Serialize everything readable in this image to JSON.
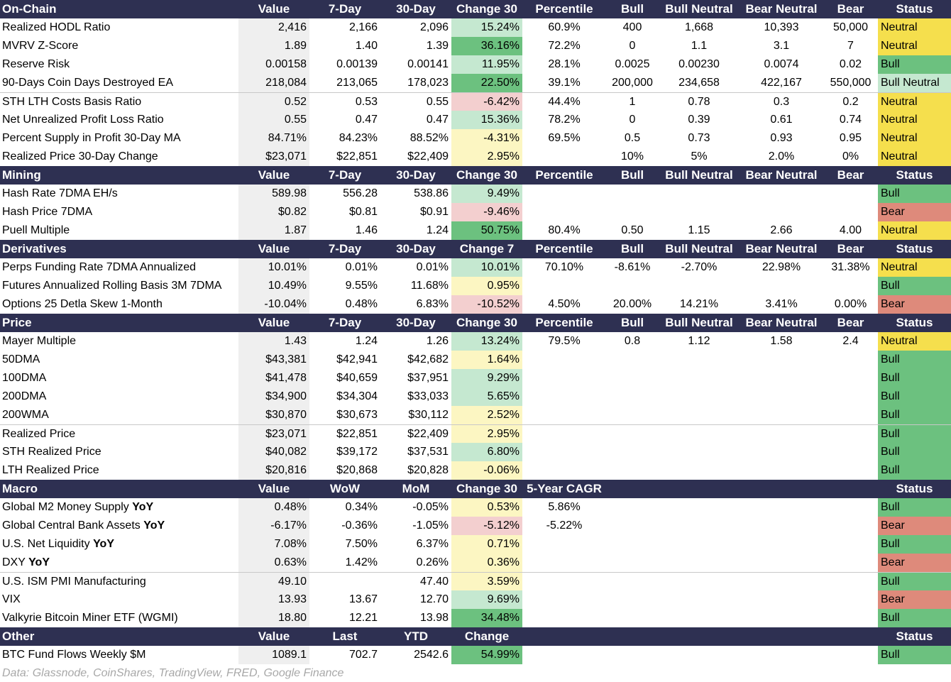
{
  "colors": {
    "header_bg": "#2e3052",
    "value_bg": "#efefef",
    "neutral": "#f5df4d",
    "bull": "#6cc17f",
    "bear": "#de8a7b",
    "bull_neutral": "#c5e8d0",
    "change_light_green": "#c5e8d0",
    "change_green": "#6cc17f",
    "change_yellow": "#fcf6c2",
    "change_pink": "#f3cfcf",
    "footer_text": "#a8a8a8"
  },
  "footer": "Data: Glassnode, CoinShares, TradingView, FRED, Google Finance",
  "sections": [
    {
      "header": [
        "On-Chain",
        "Value",
        "7-Day",
        "30-Day",
        "Change 30",
        "Percentile",
        "Bull",
        "Bull Neutral",
        "Bear Neutral",
        "Bear",
        "Status"
      ],
      "rows": [
        {
          "label": "Realized HODL Ratio",
          "vals": [
            "2,416",
            "2,166",
            "2,096",
            "15.24%",
            "60.9%",
            "400",
            "1,668",
            "10,393",
            "50,000",
            "Neutral"
          ],
          "chg": "lightgreen",
          "status": "neutral"
        },
        {
          "label": "MVRV Z-Score",
          "vals": [
            "1.89",
            "1.40",
            "1.39",
            "36.16%",
            "72.2%",
            "0",
            "1.1",
            "3.1",
            "7",
            "Neutral"
          ],
          "chg": "green",
          "status": "neutral"
        },
        {
          "label": "Reserve Risk",
          "vals": [
            "0.00158",
            "0.00139",
            "0.00141",
            "11.95%",
            "28.1%",
            "0.0025",
            "0.00230",
            "0.0074",
            "0.02",
            "Bull"
          ],
          "chg": "lightgreen",
          "status": "bull"
        },
        {
          "label": "90-Days Coin Days Destroyed EA",
          "vals": [
            "218,084",
            "213,065",
            "178,023",
            "22.50%",
            "39.1%",
            "200,000",
            "234,658",
            "422,167",
            "550,000",
            "Bull Neutral"
          ],
          "chg": "green",
          "status": "bullneutral"
        },
        {
          "label": "STH LTH Costs Basis Ratio",
          "vals": [
            "0.52",
            "0.53",
            "0.55",
            "-6.42%",
            "44.4%",
            "1",
            "0.78",
            "0.3",
            "0.2",
            "Neutral"
          ],
          "chg": "pink",
          "status": "neutral",
          "sep": true
        },
        {
          "label": "Net Unrealized Profit Loss Ratio",
          "vals": [
            "0.55",
            "0.47",
            "0.47",
            "15.36%",
            "78.2%",
            "0",
            "0.39",
            "0.61",
            "0.74",
            "Neutral"
          ],
          "chg": "lightgreen",
          "status": "neutral"
        },
        {
          "label": "Percent Supply in Profit 30-Day MA",
          "vals": [
            "84.71%",
            "84.23%",
            "88.52%",
            "-4.31%",
            "69.5%",
            "0.5",
            "0.73",
            "0.93",
            "0.95",
            "Neutral"
          ],
          "chg": "yellow",
          "status": "neutral"
        },
        {
          "label": "Realized Price 30-Day Change",
          "vals": [
            "$23,071",
            "$22,851",
            "$22,409",
            "2.95%",
            "",
            "10%",
            "5%",
            "2.0%",
            "0%",
            "Neutral"
          ],
          "chg": "yellow",
          "status": "neutral"
        }
      ]
    },
    {
      "header": [
        "Mining",
        "Value",
        "7-Day",
        "30-Day",
        "Change 30",
        "Percentile",
        "Bull",
        "Bull Neutral",
        "Bear Neutral",
        "Bear",
        "Status"
      ],
      "rows": [
        {
          "label": "Hash Rate 7DMA EH/s",
          "vals": [
            "589.98",
            "556.28",
            "538.86",
            "9.49%",
            "",
            "",
            "",
            "",
            "",
            "Bull"
          ],
          "chg": "lightgreen",
          "status": "bull"
        },
        {
          "label": "Hash Price 7DMA",
          "vals": [
            "$0.82",
            "$0.81",
            "$0.91",
            "-9.46%",
            "",
            "",
            "",
            "",
            "",
            "Bear"
          ],
          "chg": "pink",
          "status": "bear"
        },
        {
          "label": "Puell Multiple",
          "vals": [
            "1.87",
            "1.46",
            "1.24",
            "50.75%",
            "80.4%",
            "0.50",
            "1.15",
            "2.66",
            "4.00",
            "Neutral"
          ],
          "chg": "green",
          "status": "neutral"
        }
      ]
    },
    {
      "header": [
        "Derivatives",
        "Value",
        "7-Day",
        "30-Day",
        "Change 7",
        "Percentile",
        "Bull",
        "Bull Neutral",
        "Bear Neutral",
        "Bear",
        "Status"
      ],
      "rows": [
        {
          "label": "Perps Funding Rate 7DMA Annualized",
          "vals": [
            "10.01%",
            "0.01%",
            "0.01%",
            "10.01%",
            "70.10%",
            "-8.61%",
            "-2.70%",
            "22.98%",
            "31.38%",
            "Neutral"
          ],
          "chg": "lightgreen",
          "status": "neutral"
        },
        {
          "label": "Futures Annualized Rolling Basis 3M 7DMA",
          "vals": [
            "10.49%",
            "9.55%",
            "11.68%",
            "0.95%",
            "",
            "",
            "",
            "",
            "",
            "Bull"
          ],
          "chg": "yellow",
          "status": "bull"
        },
        {
          "label": "Options 25 Detla Skew 1-Month",
          "vals": [
            "-10.04%",
            "0.48%",
            "6.83%",
            "-10.52%",
            "4.50%",
            "20.00%",
            "14.21%",
            "3.41%",
            "0.00%",
            "Bear"
          ],
          "chg": "pink",
          "status": "bear"
        }
      ]
    },
    {
      "header": [
        "Price",
        "Value",
        "7-Day",
        "30-Day",
        "Change 30",
        "Percentile",
        "Bull",
        "Bull Neutral",
        "Bear Neutral",
        "Bear",
        "Status"
      ],
      "rows": [
        {
          "label": "Mayer Multiple",
          "vals": [
            "1.43",
            "1.24",
            "1.26",
            "13.24%",
            "79.5%",
            "0.8",
            "1.12",
            "1.58",
            "2.4",
            "Neutral"
          ],
          "chg": "lightgreen",
          "status": "neutral"
        },
        {
          "label": "50DMA",
          "vals": [
            "$43,381",
            "$42,941",
            "$42,682",
            "1.64%",
            "",
            "",
            "",
            "",
            "",
            "Bull"
          ],
          "chg": "yellow",
          "status": "bull"
        },
        {
          "label": "100DMA",
          "vals": [
            "$41,478",
            "$40,659",
            "$37,951",
            "9.29%",
            "",
            "",
            "",
            "",
            "",
            "Bull"
          ],
          "chg": "lightgreen",
          "status": "bull"
        },
        {
          "label": "200DMA",
          "vals": [
            "$34,900",
            "$34,304",
            "$33,033",
            "5.65%",
            "",
            "",
            "",
            "",
            "",
            "Bull"
          ],
          "chg": "lightgreen",
          "status": "bull"
        },
        {
          "label": "200WMA",
          "vals": [
            "$30,870",
            "$30,673",
            "$30,112",
            "2.52%",
            "",
            "",
            "",
            "",
            "",
            "Bull"
          ],
          "chg": "yellow",
          "status": "bull"
        },
        {
          "label": "Realized Price",
          "vals": [
            "$23,071",
            "$22,851",
            "$22,409",
            "2.95%",
            "",
            "",
            "",
            "",
            "",
            "Bull"
          ],
          "chg": "yellow",
          "status": "bull",
          "sep": true
        },
        {
          "label": "STH Realized Price",
          "vals": [
            "$40,082",
            "$39,172",
            "$37,531",
            "6.80%",
            "",
            "",
            "",
            "",
            "",
            "Bull"
          ],
          "chg": "lightgreen",
          "status": "bull"
        },
        {
          "label": "LTH Realized Price",
          "vals": [
            "$20,816",
            "$20,868",
            "$20,828",
            "-0.06%",
            "",
            "",
            "",
            "",
            "",
            "Bull"
          ],
          "chg": "yellow",
          "status": "bull"
        }
      ]
    },
    {
      "header": [
        "Macro",
        "Value",
        "WoW",
        "MoM",
        "Change 30",
        "5-Year CAGR",
        "",
        "",
        "",
        "",
        "Status"
      ],
      "rows": [
        {
          "label": "Global M2 Money Supply ",
          "label_bold": "YoY",
          "vals": [
            "0.48%",
            "0.34%",
            "-0.05%",
            "0.53%",
            "5.86%",
            "",
            "",
            "",
            "",
            "Bull"
          ],
          "chg": "yellow",
          "status": "bull"
        },
        {
          "label": "Global Central Bank Assets ",
          "label_bold": "YoY",
          "vals": [
            "-6.17%",
            "-0.36%",
            "-1.05%",
            "-5.12%",
            "-5.22%",
            "",
            "",
            "",
            "",
            "Bear"
          ],
          "chg": "pink",
          "status": "bear"
        },
        {
          "label": "U.S. Net Liquidity ",
          "label_bold": "YoY",
          "vals": [
            "7.08%",
            "7.50%",
            "6.37%",
            "0.71%",
            "",
            "",
            "",
            "",
            "",
            "Bull"
          ],
          "chg": "yellow",
          "status": "bull"
        },
        {
          "label": "DXY ",
          "label_bold": "YoY",
          "vals": [
            "0.63%",
            "1.42%",
            "0.26%",
            "0.36%",
            "",
            "",
            "",
            "",
            "",
            "Bear"
          ],
          "chg": "yellow",
          "status": "bear"
        },
        {
          "label": "U.S. ISM PMI Manufacturing",
          "vals": [
            "49.10",
            "",
            "47.40",
            "3.59%",
            "",
            "",
            "",
            "",
            "",
            "Bull"
          ],
          "chg": "yellow",
          "status": "bull",
          "sep": true
        },
        {
          "label": "VIX",
          "vals": [
            "13.93",
            "13.67",
            "12.70",
            "9.69%",
            "",
            "",
            "",
            "",
            "",
            "Bear"
          ],
          "chg": "lightgreen",
          "status": "bear"
        },
        {
          "label": "Valkyrie Bitcoin Miner ETF (WGMI)",
          "vals": [
            "18.80",
            "12.21",
            "13.98",
            "34.48%",
            "",
            "",
            "",
            "",
            "",
            "Bull"
          ],
          "chg": "green",
          "status": "bull"
        }
      ]
    },
    {
      "header": [
        "Other",
        "Value",
        "Last",
        "YTD",
        "Change",
        "",
        "",
        "",
        "",
        "",
        "Status"
      ],
      "rows": [
        {
          "label": "BTC Fund Flows Weekly $M",
          "vals": [
            "1089.1",
            "702.7",
            "2542.6",
            "54.99%",
            "",
            "",
            "",
            "",
            "",
            "Bull"
          ],
          "chg": "green",
          "status": "bull"
        }
      ]
    }
  ]
}
